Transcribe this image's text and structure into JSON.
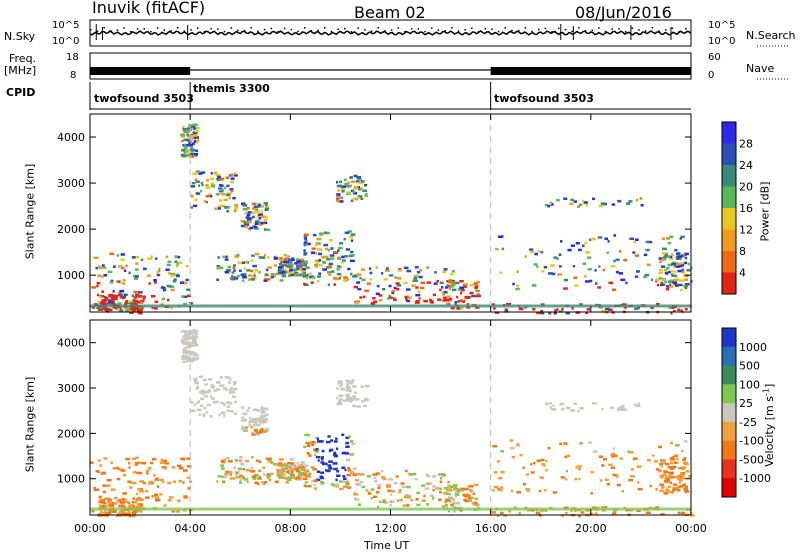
{
  "header": {
    "radar": "Inuvik (fitACF)",
    "beam": "Beam 02",
    "date": "08/Jun/2016"
  },
  "params": {
    "nsky_label": "N.Sky",
    "nsky_ticks": [
      "10^5",
      "10^0"
    ],
    "nsearch_label": "N.Search",
    "nsearch_ticks": [
      "10^5",
      "10^0"
    ],
    "freq_label_1": "Freq.",
    "freq_label_2": "[MHz]",
    "freq_ticks": [
      "18",
      "8"
    ],
    "nave_label": "Nave",
    "nave_ticks": [
      "60",
      "0"
    ],
    "cpid_label": "CPID"
  },
  "cpid_segments": [
    {
      "name": "twofsound 3503",
      "start_hour": 0,
      "end_hour": 4
    },
    {
      "name": "themis 3300",
      "start_hour": 4,
      "end_hour": 16
    },
    {
      "name": "twofsound 3503",
      "start_hour": 16,
      "end_hour": 24
    }
  ],
  "chart_data": [
    {
      "type": "heatmap",
      "quantity": "power",
      "ylabel": "Slant Range [km]",
      "yticks": [
        1000,
        2000,
        3000,
        4000
      ],
      "ylim": [
        200,
        4500
      ],
      "colorbar": {
        "label": "Power [dB]",
        "ticks": [
          "4",
          "8",
          "12",
          "16",
          "20",
          "24",
          "28"
        ],
        "colors": [
          "#2a2ae8",
          "#2c4fb4",
          "#3a8a7a",
          "#58b85a",
          "#e8c81e",
          "#f09a1e",
          "#ec6a14",
          "#e02418"
        ]
      }
    },
    {
      "type": "heatmap",
      "quantity": "velocity",
      "ylabel": "Slant Range [km]",
      "yticks": [
        1000,
        2000,
        3000,
        4000
      ],
      "ylim": [
        200,
        4500
      ],
      "xlabel": "Time UT",
      "xticks": [
        "00:00",
        "04:00",
        "08:00",
        "12:00",
        "16:00",
        "20:00",
        "00:00"
      ],
      "xlim_hours": [
        0,
        24
      ],
      "colorbar": {
        "label": "Velocity [m s^-1]",
        "ticks": [
          "1000",
          "500",
          "100",
          "25",
          "-25",
          "-100",
          "-500",
          "-1000"
        ],
        "colors": [
          "#2234c8",
          "#2c6cb4",
          "#3a8a5a",
          "#7ec850",
          "#c8c8c0",
          "#f0a040",
          "#f07818",
          "#e83020",
          "#e00000"
        ]
      }
    }
  ]
}
